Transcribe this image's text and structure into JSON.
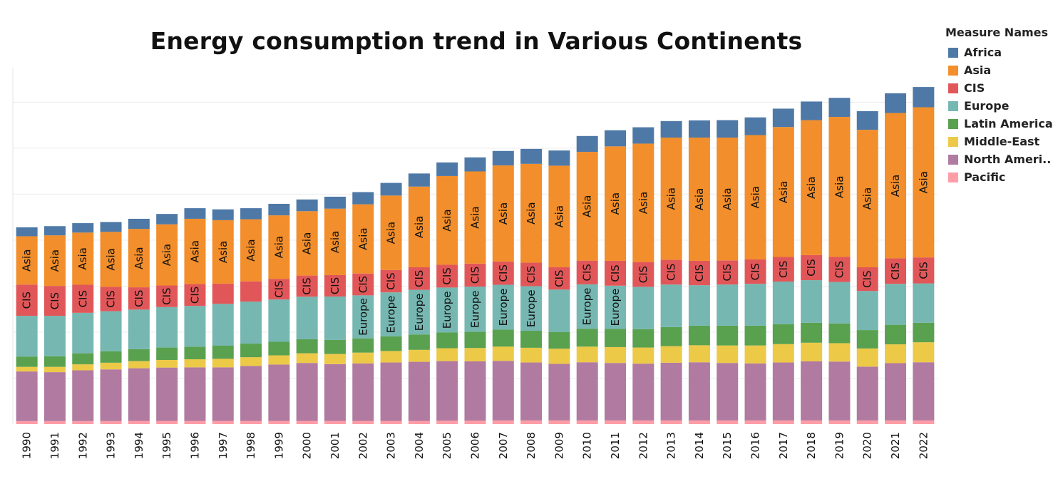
{
  "chart_data": {
    "type": "bar",
    "stacked": true,
    "title": "Energy consumption trend in Various Continents",
    "xlabel": "",
    "ylabel": "",
    "categories": [
      "1990",
      "1991",
      "1992",
      "1993",
      "1994",
      "1995",
      "1996",
      "1997",
      "1998",
      "1999",
      "2000",
      "2001",
      "2002",
      "2003",
      "2004",
      "2005",
      "2006",
      "2007",
      "2008",
      "2009",
      "2010",
      "2011",
      "2012",
      "2013",
      "2014",
      "2015",
      "2016",
      "2017",
      "2018",
      "2019",
      "2020",
      "2021",
      "2022"
    ],
    "ylim": [
      0,
      15500
    ],
    "grid": true,
    "legend": {
      "title": "Measure Names",
      "position": "top-right"
    },
    "series": [
      {
        "name": "Pacific",
        "color": "#FF9DA7",
        "values": [
          130,
          130,
          130,
          130,
          140,
          140,
          140,
          140,
          140,
          140,
          140,
          140,
          140,
          140,
          140,
          150,
          150,
          160,
          160,
          160,
          160,
          160,
          160,
          160,
          160,
          160,
          160,
          160,
          160,
          160,
          160,
          160,
          160
        ]
      },
      {
        "name": "North Ameri..",
        "color": "#B07AA1",
        "values": [
          2160,
          2130,
          2210,
          2250,
          2290,
          2320,
          2330,
          2330,
          2390,
          2450,
          2520,
          2470,
          2500,
          2540,
          2570,
          2590,
          2580,
          2590,
          2520,
          2460,
          2530,
          2500,
          2470,
          2510,
          2530,
          2500,
          2480,
          2520,
          2570,
          2560,
          2340,
          2490,
          2530
        ]
      },
      {
        "name": "Middle-East",
        "color": "#EDC948",
        "values": [
          200,
          230,
          260,
          290,
          310,
          330,
          350,
          370,
          380,
          400,
          420,
          440,
          470,
          500,
          520,
          560,
          580,
          620,
          640,
          660,
          680,
          690,
          700,
          720,
          740,
          760,
          780,
          800,
          810,
          800,
          790,
          820,
          870
        ]
      },
      {
        "name": "Latin America",
        "color": "#59A14F",
        "values": [
          450,
          460,
          480,
          500,
          520,
          540,
          550,
          570,
          590,
          590,
          610,
          610,
          620,
          640,
          670,
          690,
          710,
          740,
          740,
          730,
          780,
          790,
          800,
          830,
          850,
          860,
          860,
          870,
          870,
          860,
          800,
          850,
          850
        ]
      },
      {
        "name": "Europe",
        "color": "#76B7B2",
        "values": [
          1770,
          1760,
          1760,
          1740,
          1720,
          1760,
          1770,
          1820,
          1830,
          1840,
          1850,
          1890,
          1870,
          1910,
          1940,
          1950,
          1960,
          1950,
          1940,
          1840,
          1930,
          1880,
          1840,
          1850,
          1760,
          1790,
          1820,
          1850,
          1850,
          1800,
          1700,
          1780,
          1710
        ]
      },
      {
        "name": "CIS",
        "color": "#E15759",
        "values": [
          1360,
          1300,
          1220,
          1060,
          970,
          940,
          950,
          880,
          880,
          900,
          920,
          930,
          950,
          970,
          980,
          990,
          1000,
          1010,
          1020,
          970,
          1030,
          1080,
          1080,
          1080,
          1060,
          1050,
          1060,
          1070,
          1090,
          1090,
          1030,
          1110,
          1130
        ]
      },
      {
        "name": "Asia",
        "color": "#F28E2B",
        "values": [
          2100,
          2200,
          2270,
          2390,
          2540,
          2660,
          2840,
          2760,
          2700,
          2760,
          2800,
          2890,
          3010,
          3240,
          3510,
          3860,
          4010,
          4180,
          4300,
          4420,
          4730,
          4980,
          5150,
          5310,
          5360,
          5340,
          5410,
          5650,
          5870,
          6090,
          5980,
          6320,
          6530
        ]
      },
      {
        "name": "Africa",
        "color": "#4E79A7",
        "values": [
          390,
          400,
          410,
          430,
          440,
          450,
          460,
          470,
          480,
          500,
          510,
          520,
          530,
          550,
          570,
          590,
          610,
          630,
          650,
          660,
          690,
          700,
          710,
          720,
          750,
          760,
          770,
          800,
          810,
          830,
          810,
          860,
          880
        ]
      }
    ],
    "bar_labels": {
      "Asia": [
        "Asia",
        "Asia",
        "Asia",
        "Asia",
        "Asia",
        "Asia",
        "Asia",
        "Asia",
        "Asia",
        "Asia",
        "Asia",
        "Asia",
        "Asia",
        "Asia",
        "Asia",
        "Asia",
        "Asia",
        "Asia",
        "Asia",
        "Asia",
        "Asia",
        "Asia",
        "Asia",
        "Asia",
        "Asia",
        "Asia",
        "Asia",
        "Asia",
        "Asia",
        "Asia",
        "Asia",
        "Asia",
        "Asia"
      ],
      "CIS": [
        "CIS",
        "CIS",
        "CIS",
        "CIS",
        "CIS",
        "CIS",
        "CIS",
        "",
        "",
        "CIS",
        "CIS",
        "CIS",
        "CIS",
        "CIS",
        "CIS",
        "CIS",
        "CIS",
        "CIS",
        "CIS",
        "CIS",
        "CIS",
        "CIS",
        "CIS",
        "CIS",
        "CIS",
        "CIS",
        "CIS",
        "CIS",
        "CIS",
        "CIS",
        "CIS",
        "CIS",
        "CIS"
      ],
      "Europe": [
        "",
        "",
        "",
        "",
        "",
        "",
        "",
        "",
        "",
        "",
        "",
        "",
        "Europe",
        "Europe",
        "Europe",
        "Europe",
        "Europe",
        "Europe",
        "Europe",
        "",
        "Europe",
        "Europe",
        "",
        "",
        "",
        "",
        "",
        "",
        "",
        "",
        "",
        "",
        ""
      ]
    }
  }
}
